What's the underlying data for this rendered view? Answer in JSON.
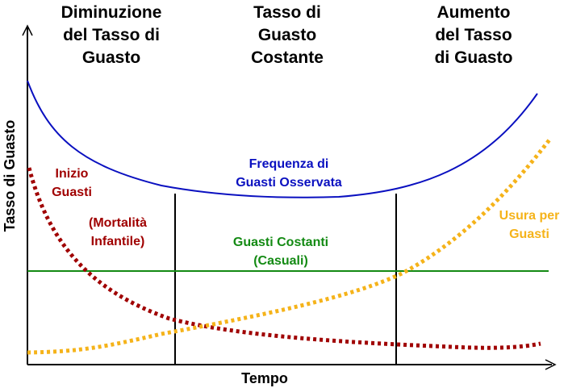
{
  "headers": {
    "decreasing": [
      "Diminuzione",
      "del Tasso di",
      "Guasto"
    ],
    "constant": [
      "Tasso di",
      "Guasto",
      "Costante"
    ],
    "increasing": [
      "Aumento",
      "del Tasso",
      "di Guasto"
    ]
  },
  "axes": {
    "x_label": "Tempo",
    "y_label": "Tasso di Guasto"
  },
  "curves": {
    "observed": {
      "label": [
        "Frequenza di",
        "Guasti Osservata"
      ],
      "color": "#0a10c0"
    },
    "early": {
      "label": [
        "Inizio",
        "Guasti"
      ],
      "color": "#a00000"
    },
    "infant": {
      "label": [
        "(Mortalità",
        "Infantile)"
      ],
      "color": "#a00000"
    },
    "constant": {
      "label": [
        "Guasti Costanti",
        "(Casuali)"
      ],
      "color": "#138a13"
    },
    "wearout": {
      "label": [
        "Usura per",
        "Guasti"
      ],
      "color": "#f5b31a"
    }
  }
}
